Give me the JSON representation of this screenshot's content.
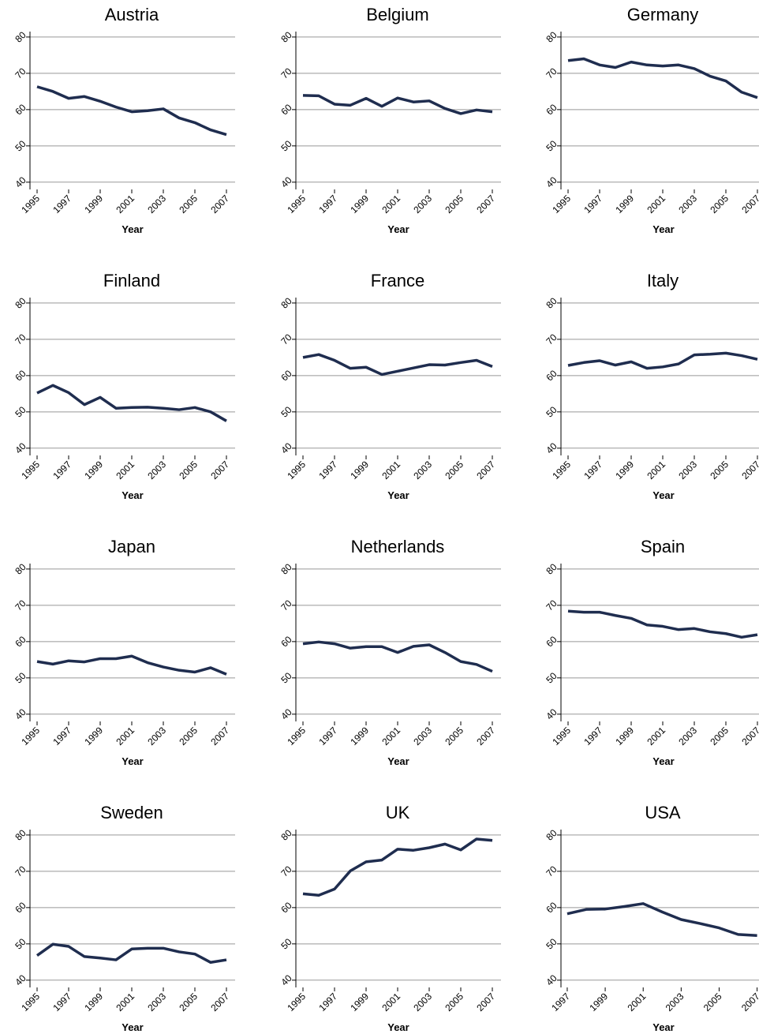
{
  "chart_data": [
    {
      "type": "line",
      "title": "Austria",
      "xlabel": "Year",
      "x": [
        1995,
        1996,
        1997,
        1998,
        1999,
        2000,
        2001,
        2002,
        2003,
        2004,
        2005,
        2006,
        2007
      ],
      "values": [
        66.3,
        65,
        63.1,
        63.6,
        62.3,
        60.7,
        59.4,
        59.7,
        60.2,
        57.7,
        56.4,
        54.4,
        53.1
      ],
      "color": "#1f2d4f",
      "xlim": [
        1994.55,
        2007.55
      ],
      "xticks": [
        1995,
        1997,
        1999,
        2001,
        2003,
        2005,
        2007
      ],
      "ylim": [
        38,
        81.5
      ],
      "yticks": [
        40,
        50,
        60,
        70,
        80
      ],
      "grid": true
    },
    {
      "type": "line",
      "title": "Belgium",
      "xlabel": "Year",
      "x": [
        1995,
        1996,
        1997,
        1998,
        1999,
        2000,
        2001,
        2002,
        2003,
        2004,
        2005,
        2006,
        2007
      ],
      "values": [
        63.9,
        63.8,
        61.5,
        61.2,
        63.1,
        60.9,
        63.2,
        62.1,
        62.4,
        60.3,
        58.9,
        59.9,
        59.4
      ],
      "color": "#1f2d4f",
      "xlim": [
        1994.55,
        2007.55
      ],
      "xticks": [
        1995,
        1997,
        1999,
        2001,
        2003,
        2005,
        2007
      ],
      "ylim": [
        38,
        81.5
      ],
      "yticks": [
        40,
        50,
        60,
        70,
        80
      ],
      "grid": true
    },
    {
      "type": "line",
      "title": "Germany",
      "xlabel": "Year",
      "x": [
        1995,
        1996,
        1997,
        1998,
        1999,
        2000,
        2001,
        2002,
        2003,
        2004,
        2005,
        2006,
        2007
      ],
      "values": [
        73.5,
        74,
        72.3,
        71.6,
        73.1,
        72.3,
        72,
        72.3,
        71.3,
        69.2,
        67.9,
        64.8,
        63.3
      ],
      "color": "#1f2d4f",
      "xlim": [
        1994.55,
        2007.1
      ],
      "xticks": [
        1995,
        1997,
        1999,
        2001,
        2003,
        2005,
        2007
      ],
      "ylim": [
        38,
        81.5
      ],
      "yticks": [
        40,
        50,
        60,
        70,
        80
      ],
      "grid": true
    },
    {
      "type": "line",
      "title": "Finland",
      "xlabel": "Year",
      "x": [
        1995,
        1996,
        1997,
        1998,
        1999,
        2000,
        2001,
        2002,
        2003,
        2004,
        2005,
        2006,
        2007
      ],
      "values": [
        55.2,
        57.3,
        55.3,
        52,
        54,
        51,
        51.2,
        51.3,
        51,
        50.6,
        51.2,
        50,
        47.5
      ],
      "color": "#1f2d4f",
      "xlim": [
        1994.55,
        2007.55
      ],
      "xticks": [
        1995,
        1997,
        1999,
        2001,
        2003,
        2005,
        2007
      ],
      "ylim": [
        38,
        81.5
      ],
      "yticks": [
        40,
        50,
        60,
        70,
        80
      ],
      "grid": true
    },
    {
      "type": "line",
      "title": "France",
      "xlabel": "Year",
      "x": [
        1995,
        1996,
        1997,
        1998,
        1999,
        2000,
        2001,
        2002,
        2003,
        2004,
        2005,
        2006,
        2007
      ],
      "values": [
        65,
        65.8,
        64.2,
        62,
        62.3,
        60.3,
        61.2,
        62.1,
        63,
        62.9,
        63.6,
        64.2,
        62.5
      ],
      "color": "#1f2d4f",
      "xlim": [
        1994.55,
        2007.55
      ],
      "xticks": [
        1995,
        1997,
        1999,
        2001,
        2003,
        2005,
        2007
      ],
      "ylim": [
        38,
        81.5
      ],
      "yticks": [
        40,
        50,
        60,
        70,
        80
      ],
      "grid": true
    },
    {
      "type": "line",
      "title": "Italy",
      "xlabel": "Year",
      "x": [
        1995,
        1996,
        1997,
        1998,
        1999,
        2000,
        2001,
        2002,
        2003,
        2004,
        2005,
        2006,
        2007
      ],
      "values": [
        62.8,
        63.6,
        64.1,
        62.9,
        63.8,
        62,
        62.4,
        63.2,
        65.7,
        65.9,
        66.2,
        65.5,
        64.5
      ],
      "color": "#1f2d4f",
      "xlim": [
        1994.55,
        2007.1
      ],
      "xticks": [
        1995,
        1997,
        1999,
        2001,
        2003,
        2005,
        2007
      ],
      "ylim": [
        38,
        81.5
      ],
      "yticks": [
        40,
        50,
        60,
        70,
        80
      ],
      "grid": true
    },
    {
      "type": "line",
      "title": "Japan",
      "xlabel": "Year",
      "x": [
        1995,
        1996,
        1997,
        1998,
        1999,
        2000,
        2001,
        2002,
        2003,
        2004,
        2005,
        2006,
        2007
      ],
      "values": [
        54.5,
        53.8,
        54.7,
        54.4,
        55.3,
        55.3,
        56,
        54.2,
        53,
        52.1,
        51.6,
        52.8,
        51
      ],
      "color": "#1f2d4f",
      "xlim": [
        1994.55,
        2007.55
      ],
      "xticks": [
        1995,
        1997,
        1999,
        2001,
        2003,
        2005,
        2007
      ],
      "ylim": [
        38,
        81.5
      ],
      "yticks": [
        40,
        50,
        60,
        70,
        80
      ],
      "grid": true
    },
    {
      "type": "line",
      "title": "Netherlands",
      "xlabel": "Year",
      "x": [
        1995,
        1996,
        1997,
        1998,
        1999,
        2000,
        2001,
        2002,
        2003,
        2004,
        2005,
        2006,
        2007
      ],
      "values": [
        59.4,
        59.9,
        59.4,
        58.2,
        58.6,
        58.6,
        57,
        58.7,
        59.1,
        57,
        54.5,
        53.7,
        51.8
      ],
      "color": "#1f2d4f",
      "xlim": [
        1994.55,
        2007.55
      ],
      "xticks": [
        1995,
        1997,
        1999,
        2001,
        2003,
        2005,
        2007
      ],
      "ylim": [
        38,
        81.5
      ],
      "yticks": [
        40,
        50,
        60,
        70,
        80
      ],
      "grid": true
    },
    {
      "type": "line",
      "title": "Spain",
      "xlabel": "Year",
      "x": [
        1995,
        1996,
        1997,
        1998,
        1999,
        2000,
        2001,
        2002,
        2003,
        2004,
        2005,
        2006,
        2007
      ],
      "values": [
        68.4,
        68.1,
        68.1,
        67.2,
        66.4,
        64.6,
        64.2,
        63.3,
        63.6,
        62.7,
        62.2,
        61.2,
        61.9
      ],
      "color": "#1f2d4f",
      "xlim": [
        1994.55,
        2007.1
      ],
      "xticks": [
        1995,
        1997,
        1999,
        2001,
        2003,
        2005,
        2007
      ],
      "ylim": [
        38,
        81.5
      ],
      "yticks": [
        40,
        50,
        60,
        70,
        80
      ],
      "grid": true
    },
    {
      "type": "line",
      "title": "Sweden",
      "xlabel": "Year",
      "x": [
        1995,
        1996,
        1997,
        1998,
        1999,
        2000,
        2001,
        2002,
        2003,
        2004,
        2005,
        2006,
        2007
      ],
      "values": [
        46.8,
        49.9,
        49.3,
        46.5,
        46.1,
        45.6,
        48.6,
        48.8,
        48.8,
        47.8,
        47.2,
        44.9,
        45.6
      ],
      "color": "#1f2d4f",
      "xlim": [
        1994.55,
        2007.55
      ],
      "xticks": [
        1995,
        1997,
        1999,
        2001,
        2003,
        2005,
        2007
      ],
      "ylim": [
        38,
        81.5
      ],
      "yticks": [
        40,
        50,
        60,
        70,
        80
      ],
      "grid": true
    },
    {
      "type": "line",
      "title": "UK",
      "xlabel": "Year",
      "x": [
        1995,
        1996,
        1997,
        1998,
        1999,
        2000,
        2001,
        2002,
        2003,
        2004,
        2005,
        2006,
        2007
      ],
      "values": [
        63.8,
        63.4,
        65.1,
        70.1,
        72.6,
        73.1,
        76.1,
        75.8,
        76.5,
        77.5,
        75.9,
        78.9,
        78.5
      ],
      "color": "#1f2d4f",
      "xlim": [
        1994.55,
        2007.55
      ],
      "xticks": [
        1995,
        1997,
        1999,
        2001,
        2003,
        2005,
        2007
      ],
      "ylim": [
        38,
        81.5
      ],
      "yticks": [
        40,
        50,
        60,
        70,
        80
      ],
      "grid": true
    },
    {
      "type": "line",
      "title": "USA",
      "xlabel": "Year",
      "x": [
        1997,
        1998,
        1999,
        2000,
        2001,
        2002,
        2003,
        2004,
        2005,
        2006,
        2007
      ],
      "values": [
        58.3,
        59.5,
        59.6,
        60.3,
        61.1,
        58.8,
        56.7,
        55.6,
        54.4,
        52.6,
        52.3
      ],
      "color": "#1f2d4f",
      "xlim": [
        1996.67,
        2007.1
      ],
      "xticks": [
        1997,
        1999,
        2001,
        2003,
        2005,
        2007
      ],
      "ylim": [
        38,
        81.5
      ],
      "yticks": [
        40,
        50,
        60,
        70,
        80
      ],
      "grid": true
    }
  ]
}
